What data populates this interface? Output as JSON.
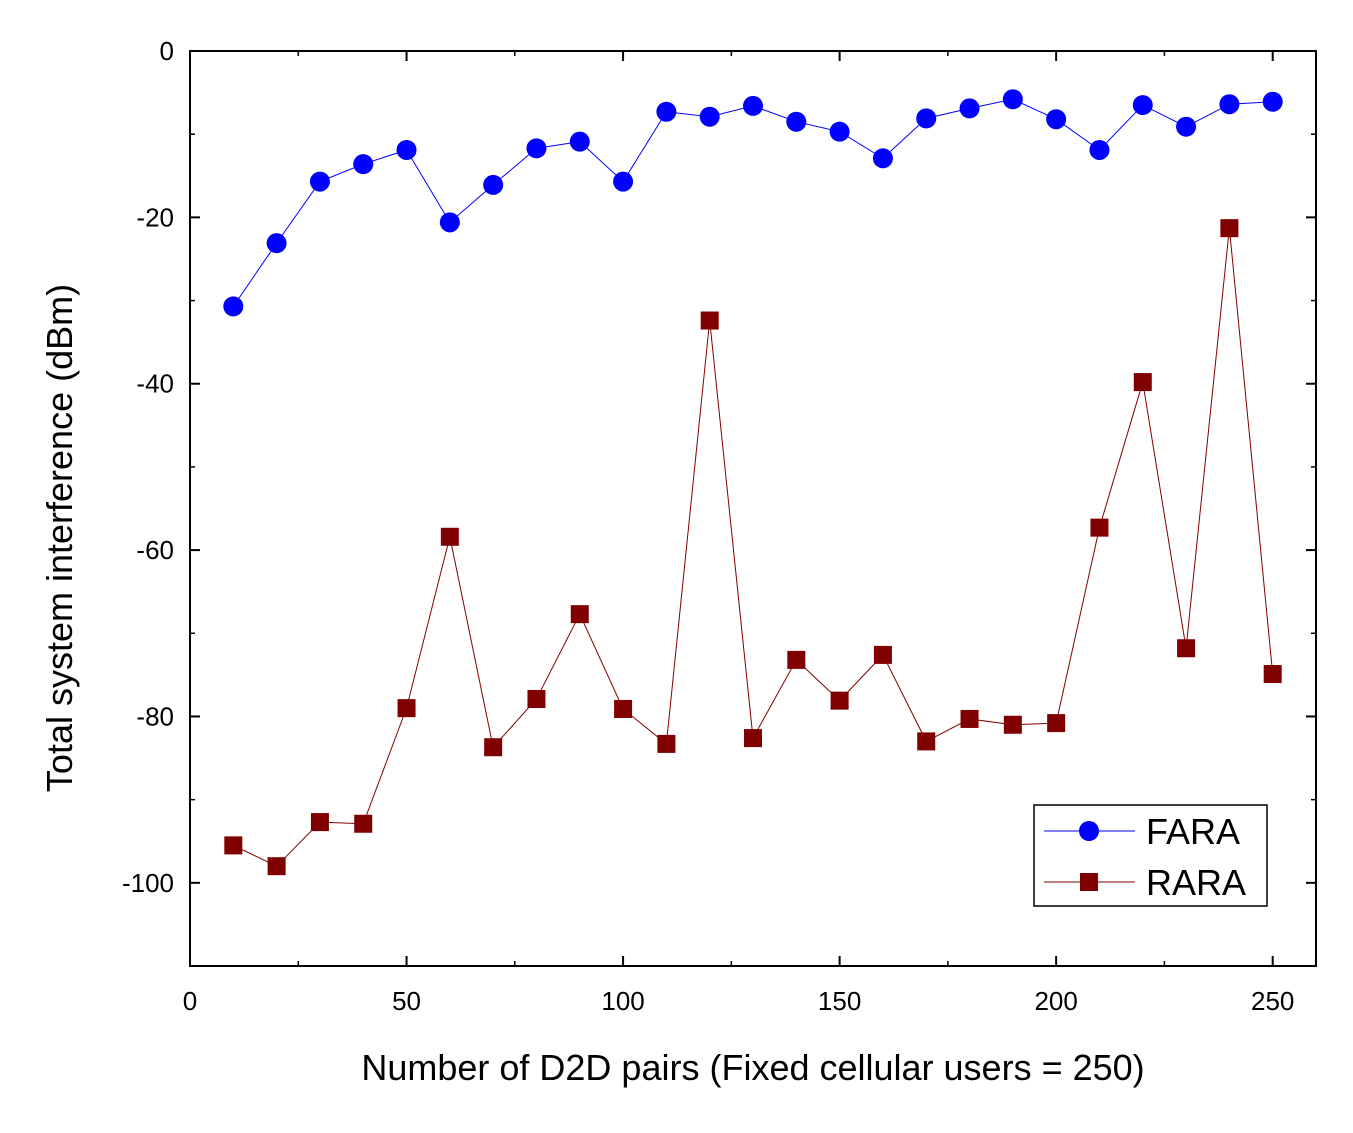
{
  "chart_data": {
    "type": "line",
    "title": "",
    "xlabel": "Number of D2D pairs (Fixed cellular users = 250)",
    "ylabel": "Total system interference (dBm)",
    "xlim": [
      0,
      260
    ],
    "ylim": [
      -110,
      0
    ],
    "xticks": [
      0,
      50,
      100,
      150,
      200,
      250
    ],
    "yticks": [
      0,
      -20,
      -40,
      -60,
      -80,
      -100
    ],
    "x": [
      10,
      20,
      30,
      40,
      50,
      60,
      70,
      80,
      90,
      100,
      110,
      120,
      130,
      140,
      150,
      160,
      170,
      180,
      190,
      200,
      210,
      220,
      230,
      240,
      250
    ],
    "series": [
      {
        "name": "FARA",
        "marker": "circle",
        "color": "#0000ff",
        "values": [
          -30.7,
          -23.1,
          -15.7,
          -13.6,
          -11.9,
          -20.6,
          -16.1,
          -11.7,
          -10.9,
          -15.7,
          -7.3,
          -7.9,
          -6.6,
          -8.5,
          -9.7,
          -12.9,
          -8.1,
          -6.9,
          -5.8,
          -8.2,
          -11.9,
          -6.5,
          -9.1,
          -6.4,
          -6.1
        ]
      },
      {
        "name": "RARA",
        "marker": "square",
        "color": "#800000",
        "values": [
          -95.5,
          -98.0,
          -92.7,
          -92.9,
          -79.0,
          -58.4,
          -83.7,
          -77.9,
          -67.7,
          -79.1,
          -83.3,
          -32.4,
          -82.6,
          -73.2,
          -78.1,
          -72.6,
          -83.0,
          -80.3,
          -81.0,
          -80.8,
          -57.3,
          -39.8,
          -71.8,
          -21.3,
          -74.9
        ]
      }
    ],
    "legend_position": "bottom-right",
    "grid": false
  }
}
